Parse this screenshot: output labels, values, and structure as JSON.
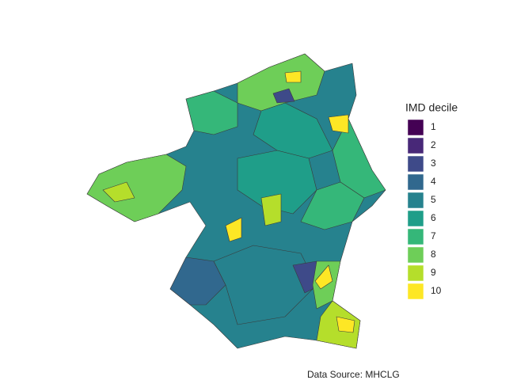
{
  "legend": {
    "title": "IMD decile",
    "items": [
      {
        "label": "1",
        "color": "#440154"
      },
      {
        "label": "2",
        "color": "#482878"
      },
      {
        "label": "3",
        "color": "#3e4a89"
      },
      {
        "label": "4",
        "color": "#31688e"
      },
      {
        "label": "5",
        "color": "#26828e"
      },
      {
        "label": "6",
        "color": "#1f9e89"
      },
      {
        "label": "7",
        "color": "#35b779"
      },
      {
        "label": "8",
        "color": "#6ece58"
      },
      {
        "label": "9",
        "color": "#b5de2b"
      },
      {
        "label": "10",
        "color": "#fde725"
      }
    ]
  },
  "caption": "Data Source: MHCLG"
}
